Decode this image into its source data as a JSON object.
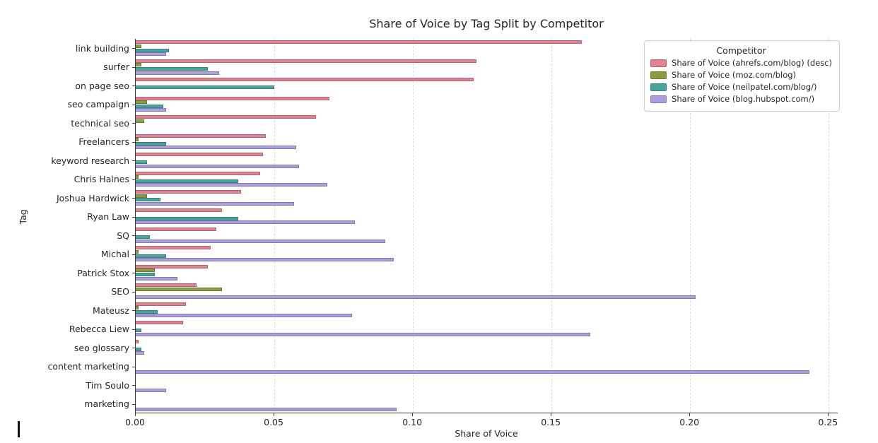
{
  "chart_data": {
    "type": "bar",
    "orientation": "horizontal",
    "title": "Share of Voice by Tag Split by Competitor",
    "xlabel": "Share of Voice",
    "ylabel": "Tag",
    "legend_title": "Competitor",
    "legend_position": "upper right",
    "grid": true,
    "grid_style": "dashed-vertical",
    "xlim": [
      0,
      0.2535
    ],
    "xticks": [
      0,
      0.05,
      0.1,
      0.15,
      0.2,
      0.25
    ],
    "xtick_labels": [
      "0.00",
      "0.05",
      "0.10",
      "0.15",
      "0.20",
      "0.25"
    ],
    "categories": [
      "link building",
      "surfer",
      "on page seo",
      "seo campaign",
      "technical seo",
      "Freelancers",
      "keyword research",
      "Chris Haines",
      "Joshua Hardwick",
      "Ryan Law",
      "SQ",
      "Michal",
      "Patrick Stox",
      "SEO",
      "Mateusz",
      "Rebecca Liew",
      "seo glossary",
      "content marketing",
      "Tim Soulo",
      "marketing"
    ],
    "series": [
      {
        "name": "Share of Voice (ahrefs.com/blog) (desc)",
        "color": "#e08290",
        "values": [
          0.161,
          0.123,
          0.122,
          0.07,
          0.065,
          0.047,
          0.046,
          0.045,
          0.038,
          0.031,
          0.029,
          0.027,
          0.026,
          0.022,
          0.018,
          0.017,
          0.001,
          0,
          0,
          0
        ]
      },
      {
        "name": "Share of Voice (moz.com/blog)",
        "color": "#8e9a3b",
        "values": [
          0.002,
          0.002,
          0,
          0.004,
          0.003,
          0.001,
          0,
          0.001,
          0.004,
          0,
          0,
          0.001,
          0.007,
          0.031,
          0.001,
          0,
          0,
          0,
          0,
          0
        ]
      },
      {
        "name": "Share of Voice (neilpatel.com/blog/)",
        "color": "#45a49e",
        "values": [
          0.012,
          0.026,
          0.05,
          0.01,
          0,
          0.011,
          0.004,
          0.037,
          0.009,
          0.037,
          0.005,
          0.011,
          0.007,
          0,
          0.008,
          0.002,
          0.002,
          0,
          0,
          0
        ]
      },
      {
        "name": "Share of Voice (blog.hubspot.com/)",
        "color": "#ab9ee0",
        "values": [
          0.011,
          0.03,
          0,
          0.011,
          0,
          0.058,
          0.059,
          0.069,
          0.057,
          0.079,
          0.09,
          0.093,
          0.015,
          0.202,
          0.078,
          0.164,
          0.003,
          0.243,
          0.011,
          0.094
        ]
      }
    ]
  },
  "artifacts": {
    "text_cursor": "|"
  }
}
